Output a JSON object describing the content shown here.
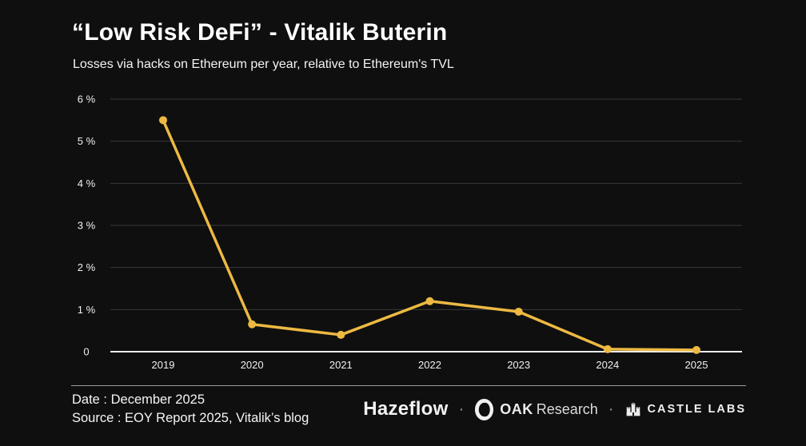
{
  "header": {
    "title": "“Low Risk DeFi” - Vitalik Buterin",
    "subtitle": "Losses via hacks on Ethereum per year, relative to Ethereum's TVL"
  },
  "chart_data": {
    "type": "line",
    "x": [
      "2019",
      "2020",
      "2021",
      "2022",
      "2023",
      "2024",
      "2025"
    ],
    "values": [
      5.5,
      0.65,
      0.4,
      1.2,
      0.95,
      0.06,
      0.04
    ],
    "title": "“Low Risk DeFi” - Vitalik Buterin",
    "subtitle": "Losses via hacks on Ethereum per year, relative to Ethereum's TVL",
    "xlabel": "",
    "ylabel": "",
    "ylim": [
      0,
      6
    ],
    "yticks": [
      0,
      1,
      2,
      3,
      4,
      5,
      6
    ],
    "ytick_labels": [
      "0",
      "1 %",
      "2 %",
      "3 %",
      "4 %",
      "5 %",
      "6 %"
    ],
    "grid": true,
    "legend": false,
    "line_color": "#EDB942",
    "grid_color": "#383838",
    "axis_color": "#ececec",
    "tick_text_color": "#f0f0f0"
  },
  "footer": {
    "date_line": "Date : December 2025",
    "source_line": "Source : EOY Report 2025, Vitalik’s blog",
    "dot": "·",
    "logos": {
      "hazeflow": "Hazeflow",
      "oak_bold": "OAK",
      "oak_light": "Research",
      "castle": "CASTLE LABS"
    }
  }
}
